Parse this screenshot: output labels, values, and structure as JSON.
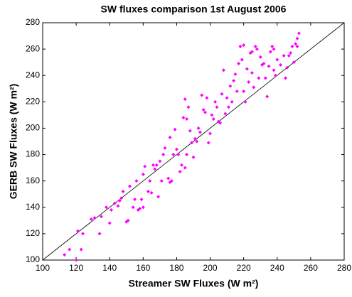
{
  "chart_data": {
    "type": "scatter",
    "title": "SW fluxes comparison 1st August 2006",
    "x_label": "Streamer SW Fluxes (W m²)",
    "y_label": "GERB SW Fluxes (W m²)",
    "xlim": [
      100,
      280
    ],
    "ylim": [
      100,
      280
    ],
    "xticks": [
      100,
      120,
      140,
      160,
      180,
      200,
      220,
      240,
      260,
      280
    ],
    "yticks": [
      100,
      120,
      140,
      160,
      180,
      200,
      220,
      240,
      260,
      280
    ],
    "reference_line": {
      "x": [
        100,
        280
      ],
      "y": [
        100,
        280
      ]
    },
    "color": "#ff00ff",
    "x": [
      113,
      116,
      120,
      121,
      123,
      124,
      129,
      131,
      134,
      135,
      138,
      140,
      141,
      143,
      145,
      146,
      147,
      148,
      150,
      151,
      152,
      154,
      155,
      156,
      157,
      158,
      159,
      160,
      160,
      161,
      163,
      164,
      165,
      166,
      167,
      168,
      169,
      170,
      171,
      172,
      173,
      175,
      176,
      176,
      177,
      178,
      179,
      181,
      182,
      183,
      184,
      185,
      186,
      187,
      188,
      189,
      190,
      191,
      192,
      193,
      194,
      195,
      196,
      197,
      198,
      199,
      200,
      201,
      202,
      203,
      204,
      205,
      206,
      207,
      208,
      209,
      210,
      211,
      212,
      213,
      214,
      215,
      216,
      217,
      218,
      219,
      220,
      220,
      221,
      222,
      223,
      224,
      225,
      225,
      226,
      227,
      228,
      229,
      230,
      231,
      232,
      233,
      234,
      235,
      236,
      237,
      238,
      238,
      239,
      240,
      242,
      244,
      245,
      246,
      247,
      248,
      250,
      251,
      252,
      253,
      252,
      249,
      185,
      186,
      180
    ],
    "values": [
      104,
      108,
      100,
      122,
      108,
      120,
      131,
      132,
      120,
      133,
      140,
      128,
      138,
      143,
      141,
      145,
      147,
      152,
      129,
      130,
      156,
      140,
      146,
      160,
      138,
      139,
      146,
      140,
      165,
      171,
      152,
      160,
      151,
      172,
      169,
      172,
      148,
      175,
      160,
      180,
      185,
      162,
      159,
      193,
      160,
      180,
      199,
      180,
      167,
      172,
      208,
      170,
      180,
      216,
      198,
      189,
      178,
      192,
      190,
      200,
      197,
      225,
      214,
      212,
      223,
      189,
      196,
      210,
      207,
      220,
      216,
      205,
      204,
      226,
      244,
      211,
      223,
      216,
      232,
      220,
      236,
      241,
      228,
      249,
      262,
      252,
      263,
      228,
      220,
      245,
      235,
      257,
      258,
      242,
      231,
      262,
      260,
      238,
      254,
      248,
      249,
      238,
      224,
      247,
      258,
      262,
      260,
      244,
      240,
      252,
      248,
      255,
      238,
      246,
      255,
      257,
      250,
      264,
      268,
      272,
      262,
      262,
      222,
      207,
      184
    ]
  }
}
